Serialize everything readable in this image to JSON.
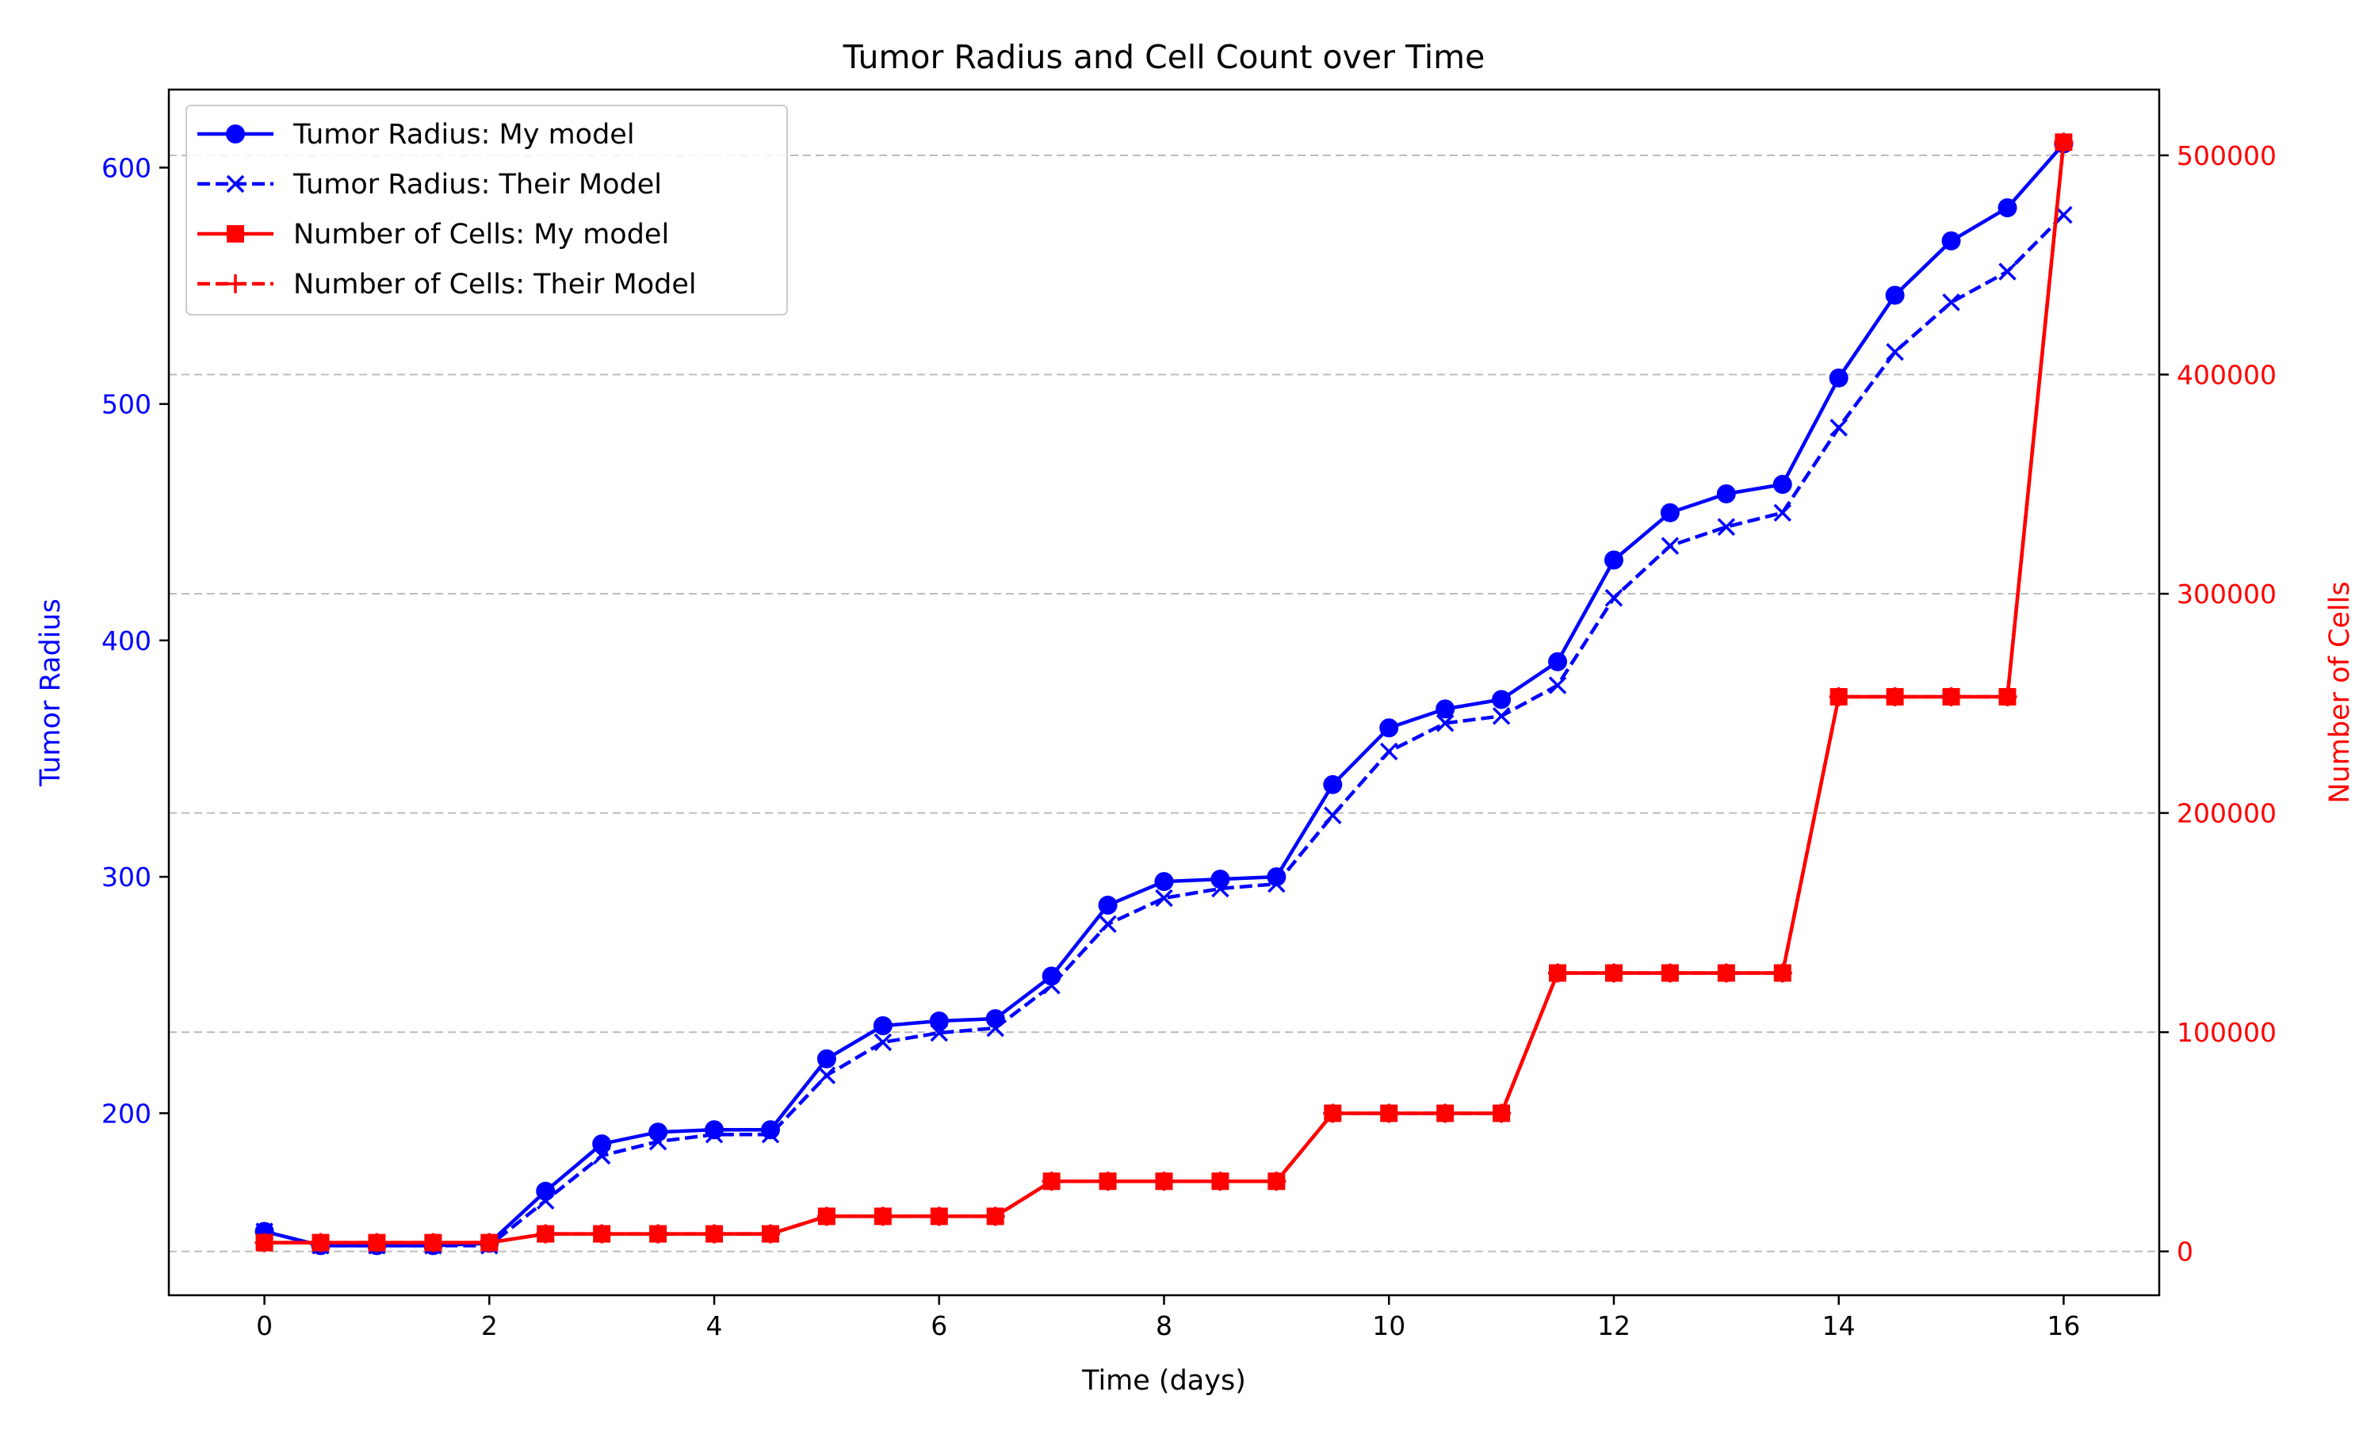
{
  "chart_data": {
    "type": "line",
    "title": "Tumor Radius and Cell Count over Time",
    "xlabel": "Time (days)",
    "ylabel_left": "Tumor Radius",
    "ylabel_right": "Number of Cells",
    "xlim": [
      -0.85,
      16.85
    ],
    "ylim_left": [
      123,
      633
    ],
    "ylim_right": [
      -20000,
      530000
    ],
    "x_ticks": [
      0,
      2,
      4,
      6,
      8,
      10,
      12,
      14,
      16
    ],
    "y_left_ticks": [
      200,
      300,
      400,
      500,
      600
    ],
    "y_right_ticks": [
      0,
      100000,
      200000,
      300000,
      400000,
      500000
    ],
    "grid": "horizontal dashed (right axis)",
    "legend_position": "top-left",
    "colors": {
      "radius": "#0000ff",
      "cells": "#ff0000",
      "grid": "#bdbdbd"
    },
    "x": [
      0,
      0.5,
      1,
      1.5,
      2,
      2.5,
      3,
      3.5,
      4,
      4.5,
      5,
      5.5,
      6,
      6.5,
      7,
      7.5,
      8,
      8.5,
      9,
      9.5,
      10,
      10.5,
      11,
      11.5,
      12,
      12.5,
      13,
      13.5,
      14,
      14.5,
      15,
      15.5,
      16
    ],
    "series": [
      {
        "name": "Tumor Radius: My model",
        "axis": "left",
        "color": "#0000ff",
        "linestyle": "solid",
        "marker": "circle",
        "values": [
          150,
          144,
          144,
          144,
          145,
          167,
          187,
          192,
          193,
          193,
          223,
          237,
          239,
          240,
          258,
          288,
          298,
          299,
          300,
          339,
          363,
          371,
          375,
          391,
          434,
          454,
          462,
          466,
          511,
          546,
          569,
          583,
          610
        ]
      },
      {
        "name": "Tumor Radius: Their Model",
        "axis": "left",
        "color": "#0000ff",
        "linestyle": "dashed",
        "marker": "x",
        "values": [
          150,
          144,
          144,
          144,
          144,
          163,
          182,
          188,
          191,
          191,
          216,
          230,
          234,
          236,
          254,
          280,
          291,
          295,
          297,
          326,
          353,
          365,
          368,
          381,
          418,
          440,
          448,
          454,
          490,
          522,
          543,
          556,
          580
        ]
      },
      {
        "name": "Number of Cells: My model",
        "axis": "right",
        "color": "#ff0000",
        "linestyle": "solid",
        "marker": "square",
        "values": [
          4000,
          4000,
          4000,
          4000,
          4000,
          8000,
          8000,
          8000,
          8000,
          8000,
          16000,
          16000,
          16000,
          16000,
          32000,
          32000,
          32000,
          32000,
          32000,
          63000,
          63000,
          63000,
          63000,
          127000,
          127000,
          127000,
          127000,
          127000,
          253000,
          253000,
          253000,
          253000,
          506000
        ]
      },
      {
        "name": "Number of Cells: Their Model",
        "axis": "right",
        "color": "#ff0000",
        "linestyle": "dashed",
        "marker": "plus",
        "values": [
          4000,
          4000,
          4000,
          4000,
          4000,
          8000,
          8000,
          8000,
          8000,
          8000,
          16000,
          16000,
          16000,
          16000,
          32000,
          32000,
          32000,
          32000,
          32000,
          63000,
          63000,
          63000,
          63000,
          127000,
          127000,
          127000,
          127000,
          127000,
          253000,
          253000,
          253000,
          253000,
          506000
        ]
      }
    ]
  }
}
